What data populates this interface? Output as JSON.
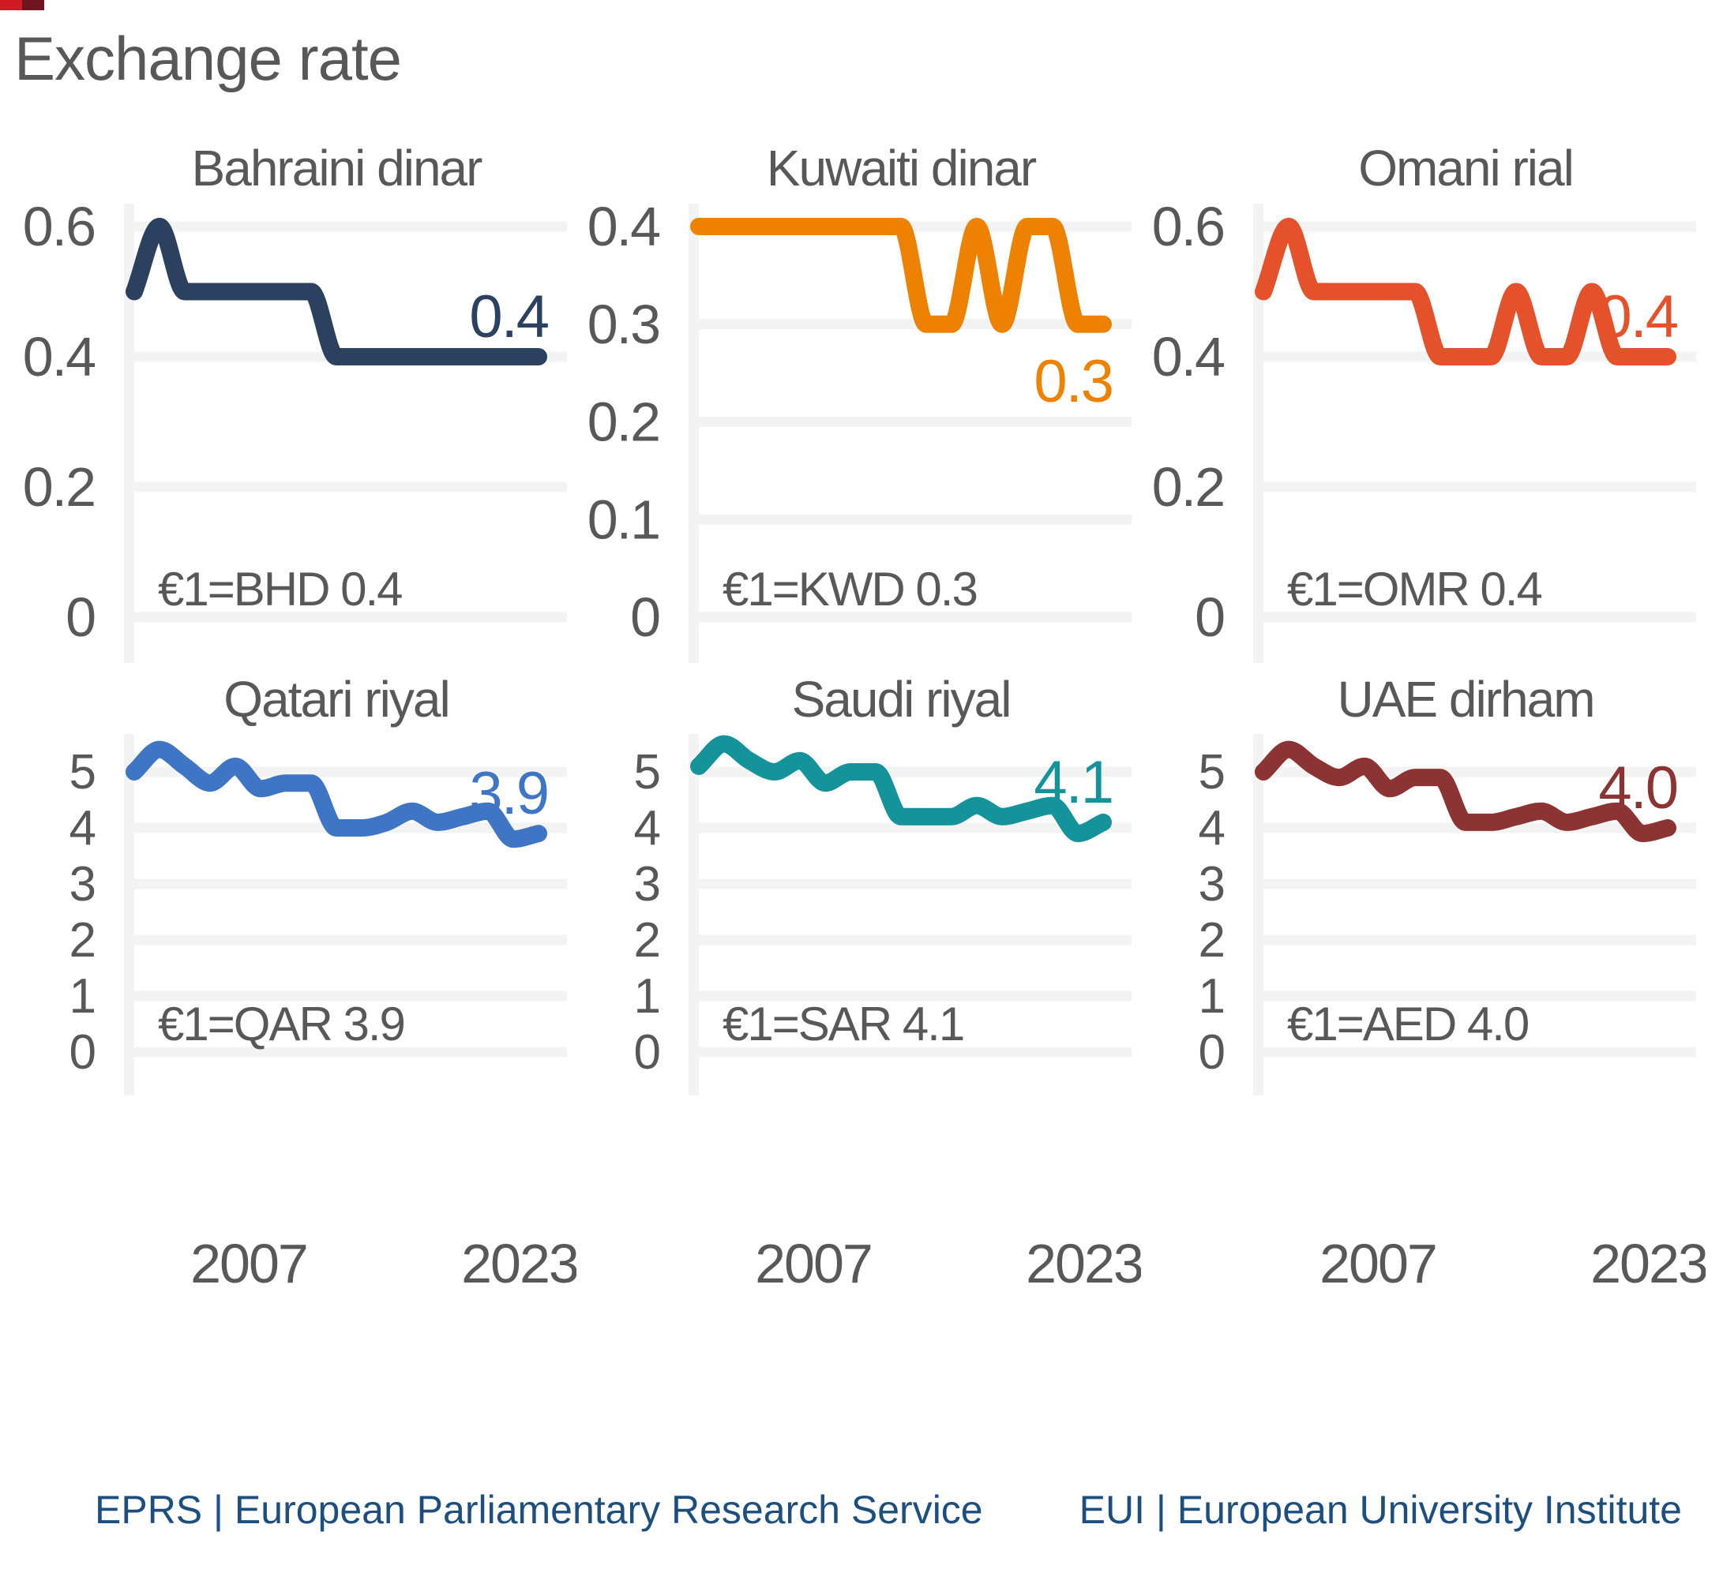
{
  "page": {
    "title": "Exchange rate"
  },
  "colors": {
    "text_gray": "#58585a",
    "gridline": "#f3f3f3",
    "axis_strip": "#f3f3f3",
    "footer_blue": "#1d4e80",
    "bahraini_dinar": "#2c405f",
    "kuwaiti_dinar": "#ee8100",
    "omani_rial": "#e4512b",
    "qatari_riyal": "#3e75c5",
    "saudi_riyal": "#14939a",
    "uae_dirham": "#8c3433"
  },
  "x_axis": {
    "range": [
      2007,
      2023
    ],
    "tick_labels": [
      "2007",
      "2023"
    ]
  },
  "chart_data": [
    {
      "id": "bahraini-dinar",
      "type": "line",
      "title": "Bahraini dinar",
      "annotation": "€1=BHD 0.4",
      "end_label": "0.4",
      "end_label_position": "above",
      "color": "#2c405f",
      "years": [
        2007,
        2008,
        2009,
        2010,
        2011,
        2012,
        2013,
        2014,
        2015,
        2016,
        2017,
        2018,
        2019,
        2020,
        2021,
        2022,
        2023
      ],
      "values": [
        0.5,
        0.6,
        0.5,
        0.5,
        0.5,
        0.5,
        0.5,
        0.5,
        0.4,
        0.4,
        0.4,
        0.4,
        0.4,
        0.4,
        0.4,
        0.4,
        0.4
      ],
      "y_ticks": [
        "0",
        "0.2",
        "0.4",
        "0.6"
      ],
      "ylim": [
        0,
        0.62
      ],
      "grid": true,
      "x_tick_labels": []
    },
    {
      "id": "kuwaiti-dinar",
      "type": "line",
      "title": "Kuwaiti dinar",
      "annotation": "€1=KWD 0.3",
      "end_label": "0.3",
      "end_label_position": "below",
      "color": "#ee8100",
      "years": [
        2007,
        2008,
        2009,
        2010,
        2011,
        2012,
        2013,
        2014,
        2015,
        2016,
        2017,
        2018,
        2019,
        2020,
        2021,
        2022,
        2023
      ],
      "values": [
        0.4,
        0.4,
        0.4,
        0.4,
        0.4,
        0.4,
        0.4,
        0.4,
        0.4,
        0.3,
        0.3,
        0.4,
        0.3,
        0.4,
        0.4,
        0.3,
        0.3
      ],
      "y_ticks": [
        "0",
        "0.1",
        "0.2",
        "0.3",
        "0.4"
      ],
      "ylim": [
        0,
        0.42
      ],
      "grid": true,
      "x_tick_labels": []
    },
    {
      "id": "omani-rial",
      "type": "line",
      "title": "Omani rial",
      "annotation": "€1=OMR 0.4",
      "end_label": "0.4",
      "end_label_position": "above",
      "color": "#e4512b",
      "years": [
        2007,
        2008,
        2009,
        2010,
        2011,
        2012,
        2013,
        2014,
        2015,
        2016,
        2017,
        2018,
        2019,
        2020,
        2021,
        2022,
        2023
      ],
      "values": [
        0.5,
        0.6,
        0.5,
        0.5,
        0.5,
        0.5,
        0.5,
        0.4,
        0.4,
        0.4,
        0.5,
        0.4,
        0.4,
        0.5,
        0.4,
        0.4,
        0.4
      ],
      "y_ticks": [
        "0",
        "0.2",
        "0.4",
        "0.6"
      ],
      "ylim": [
        0,
        0.62
      ],
      "grid": true,
      "x_tick_labels": []
    },
    {
      "id": "qatari-riyal",
      "type": "line",
      "title": "Qatari riyal",
      "annotation": "€1=QAR 3.9",
      "end_label": "3.9",
      "end_label_position": "above",
      "color": "#3e75c5",
      "years": [
        2007,
        2008,
        2009,
        2010,
        2011,
        2012,
        2013,
        2014,
        2015,
        2016,
        2017,
        2018,
        2019,
        2020,
        2021,
        2022,
        2023
      ],
      "values": [
        5.0,
        5.4,
        5.1,
        4.8,
        5.1,
        4.7,
        4.8,
        4.8,
        4.0,
        4.0,
        4.1,
        4.3,
        4.1,
        4.2,
        4.3,
        3.8,
        3.9
      ],
      "y_ticks": [
        "0",
        "1",
        "2",
        "3",
        "4",
        "5"
      ],
      "ylim": [
        0,
        5.6
      ],
      "grid": true,
      "x_tick_labels": [
        "2007",
        "2023"
      ]
    },
    {
      "id": "saudi-riyal",
      "type": "line",
      "title": "Saudi riyal",
      "annotation": "€1=SAR 4.1",
      "end_label": "4.1",
      "end_label_position": "above",
      "color": "#14939a",
      "years": [
        2007,
        2008,
        2009,
        2010,
        2011,
        2012,
        2013,
        2014,
        2015,
        2016,
        2017,
        2018,
        2019,
        2020,
        2021,
        2022,
        2023
      ],
      "values": [
        5.1,
        5.5,
        5.2,
        5.0,
        5.2,
        4.8,
        5.0,
        5.0,
        4.2,
        4.2,
        4.2,
        4.4,
        4.2,
        4.3,
        4.4,
        3.9,
        4.1
      ],
      "y_ticks": [
        "0",
        "1",
        "2",
        "3",
        "4",
        "5"
      ],
      "ylim": [
        0,
        5.6
      ],
      "grid": true,
      "x_tick_labels": [
        "2007",
        "2023"
      ]
    },
    {
      "id": "uae-dirham",
      "type": "line",
      "title": "UAE dirham",
      "annotation": "€1=AED 4.0",
      "end_label": "4.0",
      "end_label_position": "above",
      "color": "#8c3433",
      "years": [
        2007,
        2008,
        2009,
        2010,
        2011,
        2012,
        2013,
        2014,
        2015,
        2016,
        2017,
        2018,
        2019,
        2020,
        2021,
        2022,
        2023
      ],
      "values": [
        5.0,
        5.4,
        5.1,
        4.9,
        5.1,
        4.7,
        4.9,
        4.9,
        4.1,
        4.1,
        4.2,
        4.3,
        4.1,
        4.2,
        4.3,
        3.9,
        4.0
      ],
      "y_ticks": [
        "0",
        "1",
        "2",
        "3",
        "4",
        "5"
      ],
      "ylim": [
        0,
        5.6
      ],
      "grid": true,
      "x_tick_labels": [
        "2007",
        "2023"
      ]
    }
  ],
  "footer": {
    "left": "EPRS | European Parliamentary Research Service",
    "right": "EUI | European University Institute"
  }
}
